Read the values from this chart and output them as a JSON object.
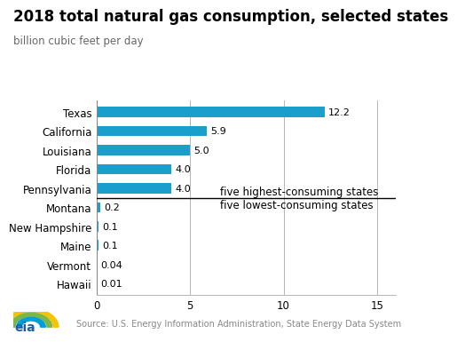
{
  "title": "2018 total natural gas consumption, selected states",
  "subtitle": "billion cubic feet per day",
  "source": "Source: U.S. Energy Information Administration, State Energy Data System",
  "states": [
    "Texas",
    "California",
    "Louisiana",
    "Florida",
    "Pennsylvania",
    "Montana",
    "New Hampshire",
    "Maine",
    "Vermont",
    "Hawaii"
  ],
  "values": [
    12.2,
    5.9,
    5.0,
    4.0,
    4.0,
    0.2,
    0.1,
    0.1,
    0.04,
    0.01
  ],
  "labels": [
    "12.2",
    "5.9",
    "5.0",
    "4.0",
    "4.0",
    "0.2",
    "0.1",
    "0.1",
    "0.04",
    "0.01"
  ],
  "bar_color": "#1a9fcc",
  "divider_index": 4,
  "annotation_high": "five highest-consuming states",
  "annotation_low": "five lowest-consuming states",
  "xlim": [
    0,
    16
  ],
  "xticks": [
    0,
    5,
    10,
    15
  ],
  "background_color": "#ffffff",
  "title_fontsize": 12,
  "subtitle_fontsize": 8.5,
  "label_fontsize": 8,
  "tick_fontsize": 8.5,
  "annotation_fontsize": 8.5,
  "source_fontsize": 7
}
